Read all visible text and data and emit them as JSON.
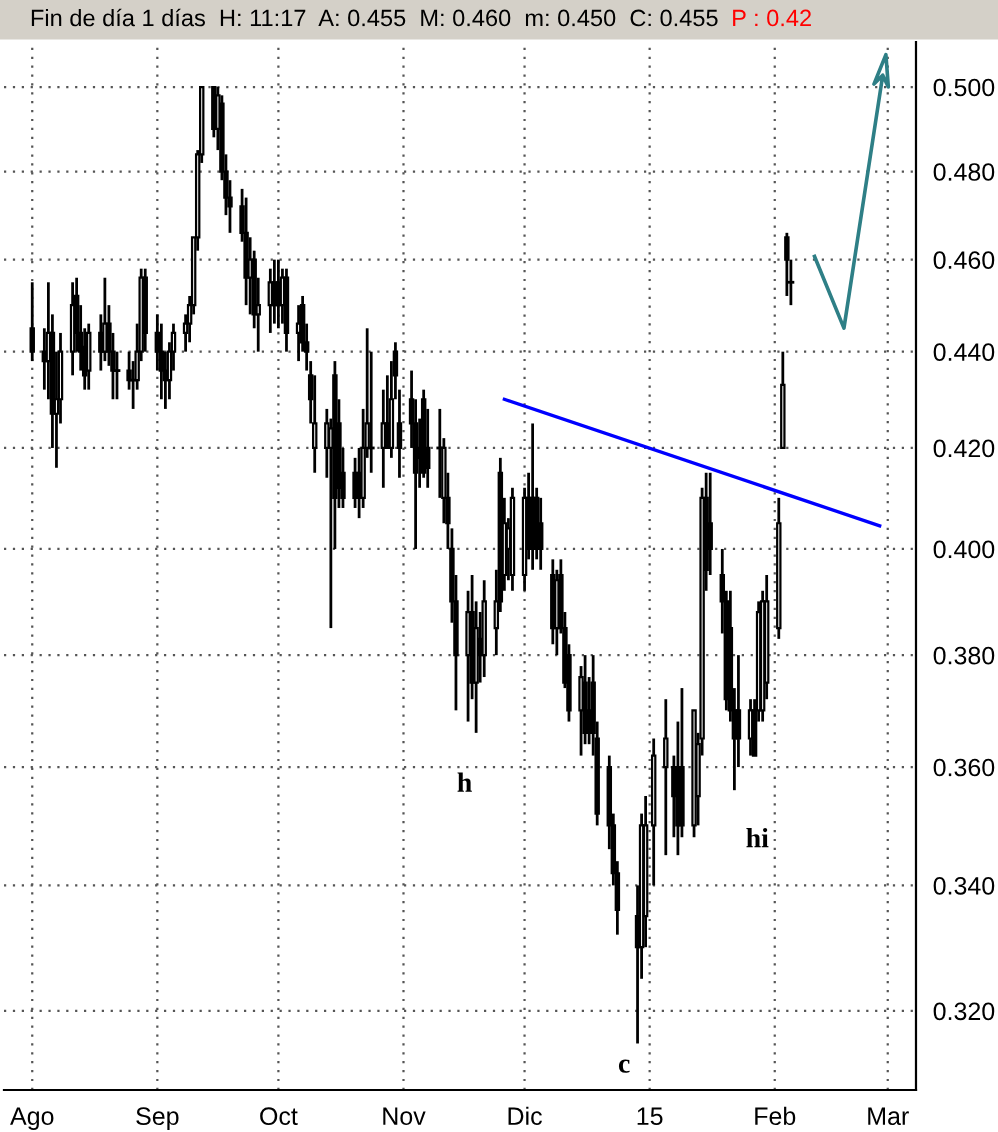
{
  "chart_data": {
    "type": "candlestick",
    "title": "Fin de día 1 días  H: 11:17  A: 0.455  M: 0.460  m: 0.450  C: 0.455",
    "annotations": [
      "P : 0.42",
      "h",
      "c",
      "hi"
    ],
    "x": [
      "2014-08-01",
      "2014-08-04",
      "2014-08-05",
      "2014-08-06",
      "2014-08-07",
      "2014-08-08",
      "2014-08-11",
      "2014-08-12",
      "2014-08-13",
      "2014-08-14",
      "2014-08-15",
      "2014-08-18",
      "2014-08-19",
      "2014-08-20",
      "2014-08-21",
      "2014-08-22",
      "2014-08-25",
      "2014-08-26",
      "2014-08-27",
      "2014-08-28",
      "2014-08-29",
      "2014-09-01",
      "2014-09-02",
      "2014-09-03",
      "2014-09-04",
      "2014-09-05",
      "2014-09-08",
      "2014-09-09",
      "2014-09-10",
      "2014-09-11",
      "2014-09-12",
      "2014-09-15",
      "2014-09-16",
      "2014-09-17",
      "2014-09-18",
      "2014-09-19",
      "2014-09-22",
      "2014-09-23",
      "2014-09-24",
      "2014-09-25",
      "2014-09-26",
      "2014-09-29",
      "2014-09-30",
      "2014-10-01",
      "2014-10-02",
      "2014-10-03",
      "2014-10-06",
      "2014-10-07",
      "2014-10-08",
      "2014-10-09",
      "2014-10-10",
      "2014-10-13",
      "2014-10-14",
      "2014-10-15",
      "2014-10-16",
      "2014-10-17",
      "2014-10-20",
      "2014-10-21",
      "2014-10-22",
      "2014-10-23",
      "2014-10-24",
      "2014-10-27",
      "2014-10-28",
      "2014-10-29",
      "2014-10-30",
      "2014-10-31",
      "2014-11-03",
      "2014-11-04",
      "2014-11-05",
      "2014-11-06",
      "2014-11-07",
      "2014-11-10",
      "2014-11-11",
      "2014-11-12",
      "2014-11-13",
      "2014-11-14",
      "2014-11-17",
      "2014-11-18",
      "2014-11-19",
      "2014-11-20",
      "2014-11-21",
      "2014-11-24",
      "2014-11-25",
      "2014-11-26",
      "2014-11-27",
      "2014-11-28",
      "2014-12-01",
      "2014-12-02",
      "2014-12-03",
      "2014-12-04",
      "2014-12-05",
      "2014-12-08",
      "2014-12-09",
      "2014-12-10",
      "2014-12-11",
      "2014-12-12",
      "2014-12-15",
      "2014-12-16",
      "2014-12-17",
      "2014-12-18",
      "2014-12-19",
      "2014-12-22",
      "2014-12-23",
      "2014-12-24",
      "2014-12-29",
      "2014-12-30",
      "2014-12-31",
      "2015-01-02",
      "2015-01-05",
      "2015-01-07",
      "2015-01-08",
      "2015-01-09",
      "2015-01-12",
      "2015-01-13",
      "2015-01-14",
      "2015-01-15",
      "2015-01-16",
      "2015-01-19",
      "2015-01-20",
      "2015-01-21",
      "2015-01-22",
      "2015-01-23",
      "2015-01-26",
      "2015-01-27",
      "2015-01-28",
      "2015-01-29",
      "2015-01-30",
      "2015-02-02",
      "2015-02-03",
      "2015-02-04",
      "2015-02-05"
    ],
    "ohlc": [
      [
        0.445,
        0.455,
        0.438,
        0.44
      ],
      [
        0.44,
        0.445,
        0.432,
        0.438
      ],
      [
        0.438,
        0.455,
        0.43,
        0.444
      ],
      [
        0.444,
        0.448,
        0.42,
        0.427
      ],
      [
        0.427,
        0.44,
        0.416,
        0.43
      ],
      [
        0.43,
        0.444,
        0.425,
        0.44
      ],
      [
        0.44,
        0.455,
        0.435,
        0.45
      ],
      [
        0.452,
        0.456,
        0.44,
        0.444
      ],
      [
        0.444,
        0.45,
        0.436,
        0.44
      ],
      [
        0.441,
        0.445,
        0.432,
        0.435
      ],
      [
        0.436,
        0.446,
        0.432,
        0.444
      ],
      [
        0.444,
        0.448,
        0.436,
        0.44
      ],
      [
        0.44,
        0.456,
        0.438,
        0.446
      ],
      [
        0.446,
        0.45,
        0.437,
        0.44
      ],
      [
        0.44,
        0.444,
        0.43,
        0.436
      ],
      [
        0.436,
        0.44,
        0.43,
        0.436
      ],
      [
        0.436,
        0.44,
        0.432,
        0.434
      ],
      [
        0.434,
        0.438,
        0.428,
        0.434
      ],
      [
        0.434,
        0.446,
        0.432,
        0.44
      ],
      [
        0.44,
        0.458,
        0.438,
        0.456
      ],
      [
        0.456,
        0.458,
        0.44,
        0.444
      ],
      [
        0.444,
        0.448,
        0.436,
        0.44
      ],
      [
        0.44,
        0.446,
        0.43,
        0.436
      ],
      [
        0.436,
        0.44,
        0.428,
        0.434
      ],
      [
        0.434,
        0.442,
        0.43,
        0.44
      ],
      [
        0.44,
        0.446,
        0.436,
        0.444
      ],
      [
        0.444,
        0.448,
        0.44,
        0.446
      ],
      [
        0.446,
        0.452,
        0.442,
        0.45
      ],
      [
        0.45,
        0.465,
        0.448,
        0.465
      ],
      [
        0.465,
        0.485,
        0.462,
        0.484
      ],
      [
        0.484,
        0.5,
        0.482,
        0.5
      ],
      [
        0.5,
        0.5,
        0.488,
        0.49
      ],
      [
        0.49,
        0.5,
        0.485,
        0.498
      ],
      [
        0.496,
        0.498,
        0.478,
        0.48
      ],
      [
        0.48,
        0.484,
        0.47,
        0.474
      ],
      [
        0.474,
        0.478,
        0.466,
        0.472
      ],
      [
        0.472,
        0.476,
        0.464,
        0.466
      ],
      [
        0.466,
        0.474,
        0.45,
        0.456
      ],
      [
        0.456,
        0.465,
        0.448,
        0.46
      ],
      [
        0.46,
        0.462,
        0.445,
        0.448
      ],
      [
        0.448,
        0.456,
        0.44,
        0.45
      ],
      [
        0.45,
        0.458,
        0.444,
        0.455
      ],
      [
        0.455,
        0.46,
        0.446,
        0.45
      ],
      [
        0.455,
        0.46,
        0.445,
        0.45
      ],
      [
        0.45,
        0.458,
        0.446,
        0.456
      ],
      [
        0.456,
        0.458,
        0.44,
        0.444
      ],
      [
        0.444,
        0.45,
        0.438,
        0.446
      ],
      [
        0.45,
        0.452,
        0.44,
        0.442
      ],
      [
        0.442,
        0.446,
        0.436,
        0.44
      ],
      [
        0.435,
        0.438,
        0.425,
        0.43
      ],
      [
        0.42,
        0.435,
        0.415,
        0.425
      ],
      [
        0.42,
        0.428,
        0.414,
        0.425
      ],
      [
        0.42,
        0.426,
        0.385,
        0.424
      ],
      [
        0.435,
        0.438,
        0.4,
        0.41
      ],
      [
        0.425,
        0.43,
        0.408,
        0.412
      ],
      [
        0.415,
        0.42,
        0.408,
        0.41
      ],
      [
        0.415,
        0.418,
        0.408,
        0.41
      ],
      [
        0.415,
        0.42,
        0.406,
        0.41
      ],
      [
        0.41,
        0.428,
        0.408,
        0.42
      ],
      [
        0.42,
        0.445,
        0.418,
        0.425
      ],
      [
        0.42,
        0.44,
        0.415,
        0.42
      ],
      [
        0.42,
        0.432,
        0.412,
        0.425
      ],
      [
        0.425,
        0.435,
        0.42,
        0.42
      ],
      [
        0.42,
        0.438,
        0.418,
        0.43
      ],
      [
        0.44,
        0.442,
        0.43,
        0.435
      ],
      [
        0.425,
        0.432,
        0.414,
        0.42
      ],
      [
        0.43,
        0.436,
        0.42,
        0.425
      ],
      [
        0.425,
        0.43,
        0.4,
        0.415
      ],
      [
        0.42,
        0.426,
        0.412,
        0.418
      ],
      [
        0.43,
        0.432,
        0.414,
        0.415
      ],
      [
        0.42,
        0.428,
        0.412,
        0.416
      ],
      [
        0.42,
        0.428,
        0.41,
        0.42
      ],
      [
        0.41,
        0.422,
        0.405,
        0.42
      ],
      [
        0.41,
        0.415,
        0.4,
        0.405
      ],
      [
        0.4,
        0.404,
        0.386,
        0.39
      ],
      [
        0.39,
        0.395,
        0.37,
        0.38
      ],
      [
        0.38,
        0.392,
        0.368,
        0.388
      ],
      [
        0.388,
        0.395,
        0.372,
        0.375
      ],
      [
        0.375,
        0.39,
        0.366,
        0.385
      ],
      [
        0.383,
        0.388,
        0.375,
        0.38
      ],
      [
        0.38,
        0.394,
        0.376,
        0.39
      ],
      [
        0.385,
        0.396,
        0.38,
        0.39
      ],
      [
        0.415,
        0.418,
        0.388,
        0.39
      ],
      [
        0.395,
        0.41,
        0.392,
        0.405
      ],
      [
        0.4,
        0.406,
        0.394,
        0.404
      ],
      [
        0.395,
        0.412,
        0.392,
        0.41
      ],
      [
        0.395,
        0.412,
        0.392,
        0.41
      ],
      [
        0.41,
        0.415,
        0.398,
        0.4
      ],
      [
        0.41,
        0.425,
        0.396,
        0.4
      ],
      [
        0.41,
        0.412,
        0.398,
        0.4
      ],
      [
        0.405,
        0.41,
        0.396,
        0.4
      ],
      [
        0.395,
        0.398,
        0.382,
        0.385
      ],
      [
        0.385,
        0.396,
        0.38,
        0.394
      ],
      [
        0.395,
        0.398,
        0.384,
        0.385
      ],
      [
        0.385,
        0.388,
        0.374,
        0.375
      ],
      [
        0.38,
        0.382,
        0.368,
        0.37
      ],
      [
        0.37,
        0.378,
        0.362,
        0.376
      ],
      [
        0.375,
        0.38,
        0.364,
        0.366
      ],
      [
        0.37,
        0.376,
        0.364,
        0.366
      ],
      [
        0.375,
        0.38,
        0.362,
        0.366
      ],
      [
        0.365,
        0.368,
        0.35,
        0.352
      ],
      [
        0.36,
        0.362,
        0.346,
        0.35
      ],
      [
        0.35,
        0.352,
        0.34,
        0.342
      ],
      [
        0.342,
        0.344,
        0.332,
        0.336
      ],
      [
        0.335,
        0.34,
        0.315,
        0.33
      ],
      [
        0.33,
        0.352,
        0.325,
        0.35
      ],
      [
        0.335,
        0.355,
        0.33,
        0.35
      ],
      [
        0.35,
        0.365,
        0.34,
        0.362
      ],
      [
        0.36,
        0.372,
        0.345,
        0.365
      ],
      [
        0.36,
        0.362,
        0.348,
        0.355
      ],
      [
        0.36,
        0.368,
        0.345,
        0.35
      ],
      [
        0.36,
        0.374,
        0.348,
        0.35
      ],
      [
        0.35,
        0.37,
        0.348,
        0.37
      ],
      [
        0.355,
        0.366,
        0.35,
        0.364
      ],
      [
        0.365,
        0.412,
        0.362,
        0.41
      ],
      [
        0.41,
        0.415,
        0.392,
        0.396
      ],
      [
        0.405,
        0.415,
        0.395,
        0.4
      ],
      [
        0.395,
        0.4,
        0.384,
        0.39
      ],
      [
        0.39,
        0.392,
        0.37,
        0.372
      ],
      [
        0.385,
        0.392,
        0.368,
        0.37
      ],
      [
        0.37,
        0.374,
        0.356,
        0.365
      ],
      [
        0.37,
        0.38,
        0.36,
        0.365
      ],
      [
        0.365,
        0.372,
        0.362,
        0.37
      ],
      [
        0.37,
        0.372,
        0.362,
        0.362
      ],
      [
        0.37,
        0.39,
        0.368,
        0.388
      ],
      [
        0.37,
        0.392,
        0.368,
        0.39
      ],
      [
        0.375,
        0.395,
        0.372,
        0.39
      ],
      [
        0.385,
        0.41,
        0.383,
        0.405
      ],
      [
        0.42,
        0.44,
        0.42,
        0.433
      ],
      [
        0.465,
        0.466,
        0.452,
        0.46
      ],
      [
        0.455,
        0.46,
        0.45,
        0.455
      ]
    ],
    "series": [
      {
        "type": "line",
        "color": "#0000ff",
        "x": [
          "2014-11-26",
          "2015-02-27"
        ],
        "values": [
          0.43,
          0.4045
        ]
      }
    ],
    "xlim": [
      "2014-07-25",
      "2015-03-08"
    ],
    "xticks": [
      {
        "value": "2014-08-01",
        "label": "Ago"
      },
      {
        "value": "2014-09-01",
        "label": "Sep"
      },
      {
        "value": "2014-10-01",
        "label": "Oct"
      },
      {
        "value": "2014-11-01",
        "label": "Nov"
      },
      {
        "value": "2014-12-01",
        "label": "Dic"
      },
      {
        "value": "2015-01-01",
        "label": "15"
      },
      {
        "value": "2015-02-01",
        "label": "Feb"
      },
      {
        "value": "2015-03-01",
        "label": "Mar"
      }
    ],
    "ylim": [
      0.308,
      0.511
    ],
    "yticks": [
      {
        "value": 0.32,
        "label": "0.320"
      },
      {
        "value": 0.34,
        "label": "0.340"
      },
      {
        "value": 0.36,
        "label": "0.360"
      },
      {
        "value": 0.38,
        "label": "0.380"
      },
      {
        "value": 0.4,
        "label": "0.400"
      },
      {
        "value": 0.42,
        "label": "0.420"
      },
      {
        "value": 0.44,
        "label": "0.440"
      },
      {
        "value": 0.46,
        "label": "0.460"
      },
      {
        "value": 0.48,
        "label": "0.480"
      },
      {
        "value": 0.5,
        "label": "0.500"
      }
    ],
    "log": true,
    "grid": true
  }
}
